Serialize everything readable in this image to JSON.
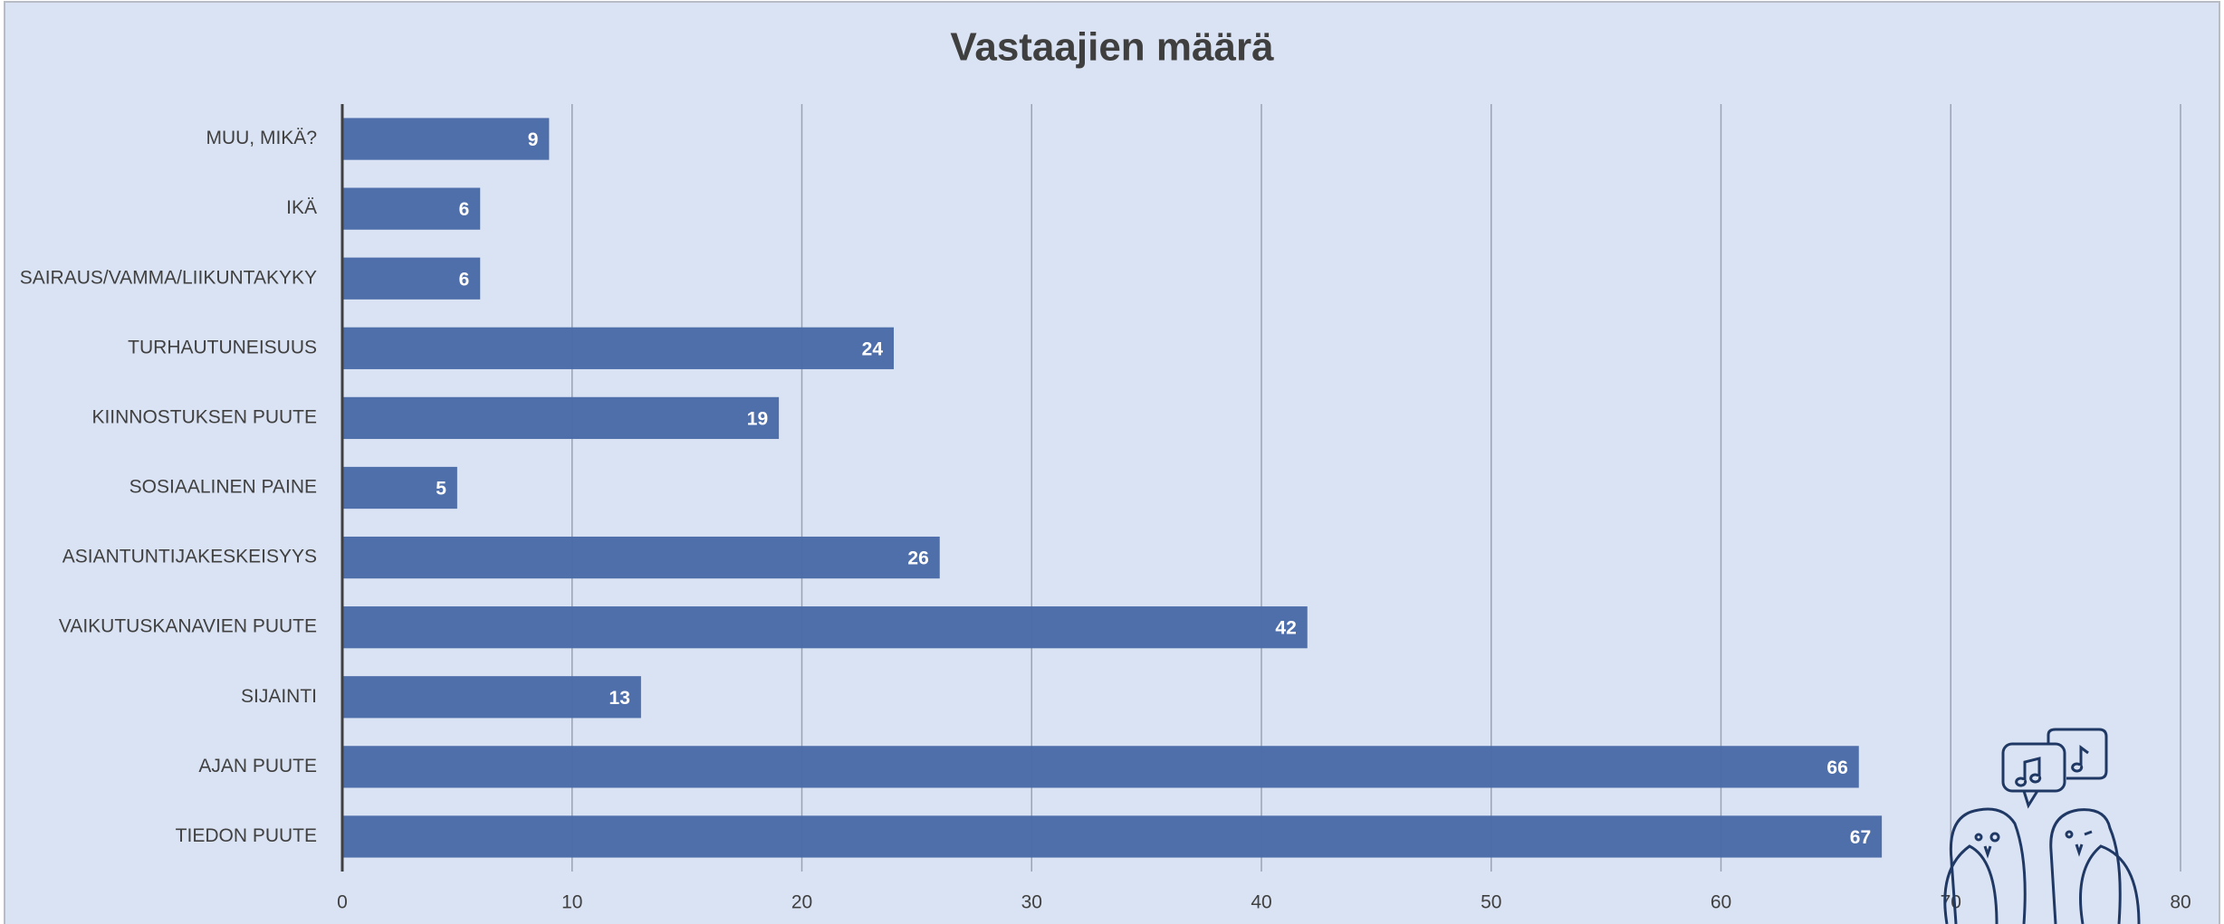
{
  "chart_data": {
    "type": "hbar",
    "title": "Vastaajien määrä",
    "categories": [
      "MUU, MIKÄ?",
      "IKÄ",
      "SAIRAUS/VAMMA/LIIKUNTAKYKY",
      "TURHAUTUNEISUUS",
      "KIINNOSTUKSEN PUUTE",
      "SOSIAALINEN PAINE",
      "ASIANTUNTIJAKESKEISYYS",
      "VAIKUTUSKANAVIEN PUUTE",
      "SIJAINTI",
      "AJAN PUUTE",
      "TIEDON PUUTE"
    ],
    "values": [
      9,
      6,
      6,
      24,
      19,
      5,
      26,
      42,
      13,
      66,
      67
    ],
    "color": "#4a6ba8",
    "xlim": [
      0,
      80
    ],
    "xticks": [
      0,
      10,
      20,
      30,
      40,
      50,
      60,
      70,
      80
    ],
    "grid": true
  }
}
